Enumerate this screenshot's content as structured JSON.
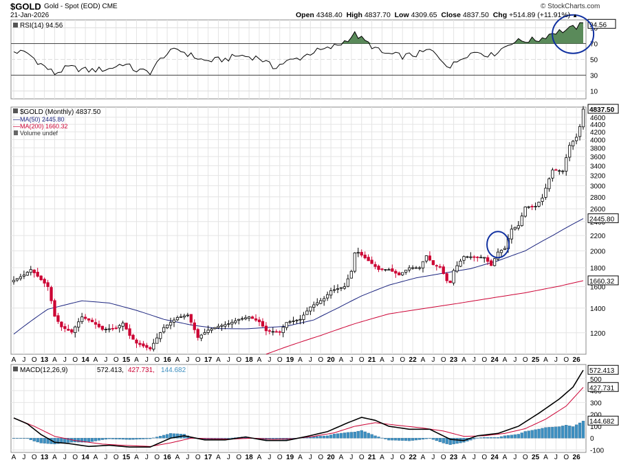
{
  "header": {
    "symbol": "$GOLD",
    "name": "Gold - Spot (EOD) CME",
    "date": "21-Jan-2026",
    "ohlc": {
      "open_label": "Open",
      "open": "4348.40",
      "high_label": "High",
      "high": "4837.70",
      "low_label": "Low",
      "low": "4309.65",
      "close_label": "Close",
      "close": "4837.50",
      "chg_label": "Chg",
      "chg": "+514.89 (+11.91%)",
      "direction_arrow": "▲"
    },
    "watermark": "© StockCharts.com"
  },
  "chart_data": {
    "type": "candlestick",
    "interval": "Monthly",
    "start_period": "Apr 2012",
    "end_period": "Jan 2026",
    "x_tick_labels": [
      "A",
      "J",
      "O",
      "13",
      "A",
      "J",
      "O",
      "14",
      "A",
      "J",
      "O",
      "15",
      "A",
      "J",
      "O",
      "16",
      "A",
      "J",
      "O",
      "17",
      "A",
      "J",
      "O",
      "18",
      "A",
      "J",
      "O",
      "19",
      "A",
      "J",
      "O",
      "20",
      "A",
      "J",
      "O",
      "21",
      "A",
      "J",
      "O",
      "22",
      "A",
      "J",
      "O",
      "23",
      "A",
      "J",
      "O",
      "24",
      "A",
      "J",
      "O",
      "25",
      "A",
      "J",
      "O",
      "26"
    ],
    "rsi": {
      "label": "RSI(14) 94.56",
      "value": "94.56",
      "ticks": [
        "90",
        "70",
        "50",
        "30",
        "10"
      ],
      "overbought": 70,
      "oversold": 30,
      "ylim": [
        0,
        100
      ],
      "color": "#000000",
      "fill_color": "#5a8a5a"
    },
    "price": {
      "legend": {
        "title": "$GOLD (Monthly) 4837.50",
        "ma50": "MA(50) 2445.80",
        "ma200": "MA(200) 1660.32",
        "volume": "Volume undef"
      },
      "scale": "log",
      "ylim": [
        1050,
        4900
      ],
      "ticks": [
        "4600",
        "4400",
        "4200",
        "4000",
        "3800",
        "3600",
        "3400",
        "3200",
        "3000",
        "2800",
        "2600",
        "2400",
        "2200",
        "2000",
        "1800",
        "1600",
        "1400",
        "1200"
      ],
      "last_labels": {
        "close": "4837.50",
        "ma50": "2445.80",
        "ma200": "1660.32"
      },
      "close_anchors": [
        [
          0,
          1665
        ],
        [
          3,
          1720
        ],
        [
          5,
          1780
        ],
        [
          8,
          1670
        ],
        [
          10,
          1600
        ],
        [
          12,
          1330
        ],
        [
          14,
          1245
        ],
        [
          17,
          1205
        ],
        [
          20,
          1325
        ],
        [
          23,
          1285
        ],
        [
          26,
          1225
        ],
        [
          30,
          1235
        ],
        [
          32,
          1275
        ],
        [
          34,
          1180
        ],
        [
          36,
          1125
        ],
        [
          40,
          1085
        ],
        [
          44,
          1240
        ],
        [
          48,
          1320
        ],
        [
          51,
          1340
        ],
        [
          54,
          1165
        ],
        [
          57,
          1220
        ],
        [
          60,
          1250
        ],
        [
          63,
          1270
        ],
        [
          66,
          1305
        ],
        [
          69,
          1325
        ],
        [
          72,
          1285
        ],
        [
          74,
          1215
        ],
        [
          78,
          1205
        ],
        [
          80,
          1280
        ],
        [
          84,
          1305
        ],
        [
          87,
          1410
        ],
        [
          91,
          1485
        ],
        [
          93,
          1560
        ],
        [
          95,
          1580
        ],
        [
          97,
          1600
        ],
        [
          99,
          1760
        ],
        [
          100,
          1975
        ],
        [
          101,
          1980
        ],
        [
          104,
          1880
        ],
        [
          107,
          1780
        ],
        [
          110,
          1780
        ],
        [
          113,
          1720
        ],
        [
          116,
          1800
        ],
        [
          119,
          1800
        ],
        [
          121,
          1940
        ],
        [
          123,
          1835
        ],
        [
          125,
          1810
        ],
        [
          127,
          1660
        ],
        [
          128,
          1640
        ],
        [
          129,
          1770
        ],
        [
          132,
          1930
        ],
        [
          135,
          1925
        ],
        [
          138,
          1920
        ],
        [
          140,
          1825
        ],
        [
          142,
          1985
        ],
        [
          144,
          2030
        ],
        [
          146,
          2290
        ],
        [
          148,
          2340
        ],
        [
          150,
          2630
        ],
        [
          153,
          2640
        ],
        [
          155,
          2780
        ],
        [
          158,
          3310
        ],
        [
          161,
          3290
        ],
        [
          163,
          3860
        ],
        [
          165,
          4060
        ],
        [
          166,
          4340
        ],
        [
          167,
          4837.5
        ]
      ],
      "ma50_anchors": [
        [
          0,
          1190
        ],
        [
          10,
          1390
        ],
        [
          20,
          1465
        ],
        [
          28,
          1445
        ],
        [
          36,
          1380
        ],
        [
          44,
          1305
        ],
        [
          52,
          1260
        ],
        [
          60,
          1232
        ],
        [
          68,
          1230
        ],
        [
          74,
          1240
        ],
        [
          80,
          1250
        ],
        [
          88,
          1300
        ],
        [
          95,
          1400
        ],
        [
          102,
          1510
        ],
        [
          110,
          1615
        ],
        [
          118,
          1690
        ],
        [
          126,
          1740
        ],
        [
          134,
          1790
        ],
        [
          142,
          1880
        ],
        [
          150,
          2000
        ],
        [
          158,
          2200
        ],
        [
          167,
          2445.8
        ]
      ],
      "ma200_anchors": [
        [
          74,
          1050
        ],
        [
          80,
          1100
        ],
        [
          90,
          1180
        ],
        [
          100,
          1270
        ],
        [
          110,
          1350
        ],
        [
          120,
          1395
        ],
        [
          130,
          1440
        ],
        [
          140,
          1490
        ],
        [
          150,
          1540
        ],
        [
          160,
          1605
        ],
        [
          167,
          1660.32
        ]
      ],
      "up_color": "#000000",
      "down_color": "#cc0033",
      "ma50_color": "#1a237e",
      "ma200_color": "#cc0033"
    },
    "macd": {
      "label": "MACD(12,26,9)",
      "macd_value": "572.413",
      "signal_value": "427.731",
      "hist_value": "144.682",
      "ticks": [
        "500",
        "400",
        "300",
        "200",
        "100",
        "0",
        "-100"
      ],
      "ylim": [
        -120,
        620
      ],
      "macd_anchors": [
        [
          0,
          170
        ],
        [
          4,
          120
        ],
        [
          8,
          30
        ],
        [
          12,
          -35
        ],
        [
          16,
          -45
        ],
        [
          22,
          -70
        ],
        [
          28,
          -60
        ],
        [
          34,
          -75
        ],
        [
          40,
          -75
        ],
        [
          46,
          0
        ],
        [
          50,
          20
        ],
        [
          56,
          -15
        ],
        [
          62,
          -15
        ],
        [
          68,
          10
        ],
        [
          74,
          -20
        ],
        [
          80,
          -20
        ],
        [
          86,
          15
        ],
        [
          92,
          55
        ],
        [
          98,
          130
        ],
        [
          102,
          175
        ],
        [
          106,
          150
        ],
        [
          110,
          100
        ],
        [
          116,
          75
        ],
        [
          122,
          75
        ],
        [
          128,
          -10
        ],
        [
          132,
          -20
        ],
        [
          136,
          20
        ],
        [
          142,
          40
        ],
        [
          148,
          100
        ],
        [
          154,
          210
        ],
        [
          160,
          330
        ],
        [
          164,
          430
        ],
        [
          167,
          572.413
        ]
      ],
      "signal_anchors": [
        [
          0,
          170
        ],
        [
          6,
          100
        ],
        [
          12,
          15
        ],
        [
          18,
          -20
        ],
        [
          26,
          -50
        ],
        [
          32,
          -60
        ],
        [
          40,
          -70
        ],
        [
          46,
          -40
        ],
        [
          52,
          0
        ],
        [
          58,
          -5
        ],
        [
          64,
          -8
        ],
        [
          70,
          0
        ],
        [
          76,
          -10
        ],
        [
          82,
          -5
        ],
        [
          88,
          15
        ],
        [
          94,
          45
        ],
        [
          100,
          100
        ],
        [
          106,
          130
        ],
        [
          112,
          110
        ],
        [
          120,
          85
        ],
        [
          126,
          60
        ],
        [
          132,
          15
        ],
        [
          138,
          20
        ],
        [
          144,
          40
        ],
        [
          150,
          80
        ],
        [
          156,
          160
        ],
        [
          162,
          270
        ],
        [
          167,
          427.731
        ]
      ],
      "macd_color": "#000000",
      "signal_color": "#cc0033",
      "hist_color": "#3d8fc0"
    },
    "annotations": [
      {
        "type": "ellipse",
        "panel": "price",
        "at_period": "Mar 2024",
        "color": "#1030a0"
      },
      {
        "type": "ellipse",
        "panel": "rsi",
        "at_period": "Jan 2026",
        "color": "#1030a0"
      }
    ]
  }
}
